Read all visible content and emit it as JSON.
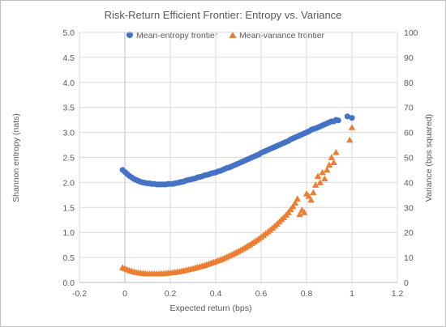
{
  "chart_data": {
    "type": "scatter",
    "title": "Risk-Return Efficient Frontier: Entropy vs. Variance",
    "xlabel": "Expected return (bps)",
    "ylabel": "Shannon entropy (nats)",
    "y2label": "Variance (bps squared)",
    "xlim": [
      -0.2,
      1.2
    ],
    "ylim": [
      0,
      5
    ],
    "y2lim": [
      0,
      100
    ],
    "xticks": [
      "-0.2",
      "0",
      "0.2",
      "0.4",
      "0.6",
      "0.8",
      "1",
      "1.2"
    ],
    "yticks": [
      "0.0",
      "0.5",
      "1.0",
      "1.5",
      "2.0",
      "2.5",
      "3.0",
      "3.5",
      "4.0",
      "4.5",
      "5.0"
    ],
    "y2ticks": [
      "0",
      "10",
      "20",
      "30",
      "40",
      "50",
      "60",
      "70",
      "80",
      "90",
      "100"
    ],
    "grid": true,
    "legend_position": "top",
    "colors": {
      "entropy": "#4472c4",
      "variance": "#ed7d31"
    },
    "series": [
      {
        "name": "Mean-entropy frontier",
        "axis": "left",
        "marker": "circle",
        "x": [
          -0.01,
          0.0,
          0.01,
          0.02,
          0.03,
          0.04,
          0.05,
          0.06,
          0.07,
          0.08,
          0.09,
          0.1,
          0.11,
          0.12,
          0.13,
          0.14,
          0.15,
          0.16,
          0.17,
          0.18,
          0.19,
          0.2,
          0.21,
          0.22,
          0.23,
          0.24,
          0.25,
          0.26,
          0.27,
          0.28,
          0.29,
          0.3,
          0.31,
          0.32,
          0.33,
          0.34,
          0.35,
          0.36,
          0.37,
          0.38,
          0.39,
          0.4,
          0.41,
          0.42,
          0.43,
          0.44,
          0.45,
          0.46,
          0.47,
          0.48,
          0.49,
          0.5,
          0.51,
          0.52,
          0.53,
          0.54,
          0.55,
          0.56,
          0.57,
          0.58,
          0.59,
          0.6,
          0.61,
          0.62,
          0.63,
          0.64,
          0.65,
          0.66,
          0.67,
          0.68,
          0.69,
          0.7,
          0.71,
          0.72,
          0.73,
          0.74,
          0.75,
          0.76,
          0.77,
          0.78,
          0.79,
          0.8,
          0.81,
          0.82,
          0.83,
          0.84,
          0.85,
          0.86,
          0.87,
          0.88,
          0.89,
          0.9,
          0.91,
          0.92,
          0.93,
          0.94,
          0.98,
          1.0
        ],
        "y": [
          2.25,
          2.21,
          2.17,
          2.13,
          2.1,
          2.07,
          2.05,
          2.03,
          2.01,
          2.0,
          1.99,
          1.98,
          1.98,
          1.97,
          1.97,
          1.96,
          1.96,
          1.96,
          1.96,
          1.96,
          1.97,
          1.97,
          1.97,
          1.98,
          1.99,
          2.0,
          2.01,
          2.02,
          2.04,
          2.05,
          2.06,
          2.07,
          2.08,
          2.1,
          2.11,
          2.12,
          2.14,
          2.15,
          2.16,
          2.18,
          2.19,
          2.2,
          2.22,
          2.23,
          2.25,
          2.27,
          2.29,
          2.3,
          2.32,
          2.34,
          2.36,
          2.38,
          2.4,
          2.42,
          2.44,
          2.46,
          2.48,
          2.5,
          2.52,
          2.54,
          2.56,
          2.59,
          2.61,
          2.63,
          2.65,
          2.67,
          2.69,
          2.71,
          2.73,
          2.75,
          2.77,
          2.79,
          2.81,
          2.83,
          2.86,
          2.88,
          2.9,
          2.92,
          2.94,
          2.96,
          2.98,
          3.0,
          3.02,
          3.05,
          3.07,
          3.08,
          3.1,
          3.12,
          3.14,
          3.16,
          3.18,
          3.2,
          3.22,
          3.22,
          3.25,
          3.24,
          3.32,
          3.29
        ]
      },
      {
        "name": "Mean-variance frontier",
        "axis": "right",
        "marker": "triangle",
        "x": [
          -0.01,
          0.0,
          0.01,
          0.02,
          0.03,
          0.04,
          0.05,
          0.06,
          0.07,
          0.08,
          0.09,
          0.1,
          0.11,
          0.12,
          0.13,
          0.14,
          0.15,
          0.16,
          0.17,
          0.18,
          0.19,
          0.2,
          0.21,
          0.22,
          0.23,
          0.24,
          0.25,
          0.26,
          0.27,
          0.28,
          0.29,
          0.3,
          0.31,
          0.32,
          0.33,
          0.34,
          0.35,
          0.36,
          0.37,
          0.38,
          0.39,
          0.4,
          0.41,
          0.42,
          0.43,
          0.44,
          0.45,
          0.46,
          0.47,
          0.48,
          0.49,
          0.5,
          0.51,
          0.52,
          0.53,
          0.54,
          0.55,
          0.56,
          0.57,
          0.58,
          0.59,
          0.6,
          0.61,
          0.62,
          0.63,
          0.64,
          0.65,
          0.66,
          0.67,
          0.68,
          0.69,
          0.7,
          0.71,
          0.72,
          0.73,
          0.74,
          0.75,
          0.76,
          0.77,
          0.78,
          0.79,
          0.8,
          0.81,
          0.82,
          0.83,
          0.84,
          0.85,
          0.86,
          0.87,
          0.88,
          0.89,
          0.9,
          0.91,
          0.92,
          0.93,
          0.99,
          1.0
        ],
        "y": [
          6.0,
          5.6,
          5.2,
          4.9,
          4.6,
          4.3,
          4.1,
          3.9,
          3.8,
          3.7,
          3.6,
          3.5,
          3.5,
          3.5,
          3.5,
          3.5,
          3.5,
          3.6,
          3.6,
          3.7,
          3.8,
          3.9,
          4.0,
          4.1,
          4.3,
          4.4,
          4.6,
          4.8,
          5.0,
          5.2,
          5.4,
          5.6,
          5.9,
          6.1,
          6.4,
          6.6,
          6.9,
          7.2,
          7.5,
          7.8,
          8.1,
          8.4,
          8.8,
          9.1,
          9.5,
          9.9,
          10.3,
          10.7,
          11.1,
          11.6,
          12.0,
          12.5,
          13.0,
          13.5,
          14.0,
          14.6,
          15.1,
          15.7,
          16.3,
          16.9,
          17.5,
          18.2,
          18.9,
          19.6,
          20.3,
          21.0,
          21.8,
          22.6,
          23.4,
          24.3,
          25.2,
          26.0,
          27.0,
          28.0,
          29.2,
          30.4,
          31.8,
          33.5,
          27.2,
          29.0,
          28.0,
          35.5,
          34.5,
          33.0,
          36.0,
          39.0,
          42.5,
          40.0,
          44.0,
          41.5,
          45.0,
          47.0,
          50.0,
          48.0,
          52.0,
          57.0,
          62.0
        ]
      }
    ]
  }
}
